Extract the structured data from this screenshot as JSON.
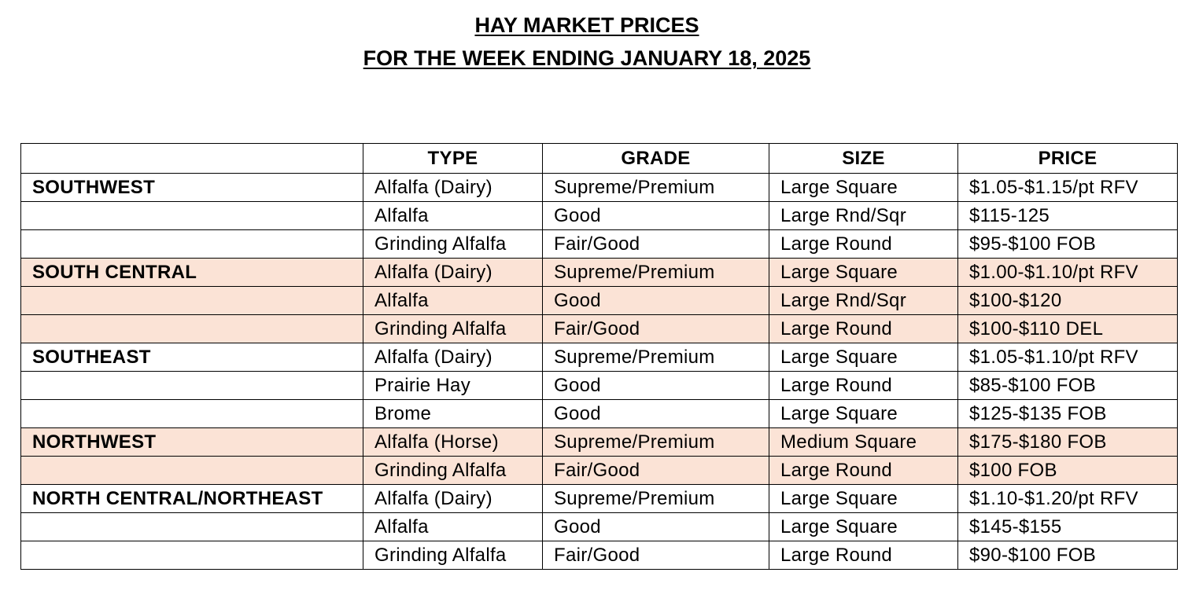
{
  "title": {
    "line1": "HAY MARKET PRICES",
    "line2": "FOR THE WEEK ENDING JANUARY 18, 2025"
  },
  "table": {
    "headers": [
      "",
      "TYPE",
      "GRADE",
      "SIZE",
      "PRICE"
    ],
    "rows": [
      {
        "region": "SOUTHWEST",
        "type": "Alfalfa (Dairy)",
        "grade": "Supreme/Premium",
        "size": "Large Square",
        "price": "$1.05-$1.15/pt RFV",
        "shaded": false
      },
      {
        "region": "",
        "type": "Alfalfa",
        "grade": "Good",
        "size": "Large Rnd/Sqr",
        "price": "$115-125",
        "shaded": false
      },
      {
        "region": "",
        "type": "Grinding Alfalfa",
        "grade": "Fair/Good",
        "size": "Large Round",
        "price": "$95-$100 FOB",
        "shaded": false
      },
      {
        "region": "SOUTH CENTRAL",
        "type": "Alfalfa (Dairy)",
        "grade": "Supreme/Premium",
        "size": "Large Square",
        "price": "$1.00-$1.10/pt RFV",
        "shaded": true
      },
      {
        "region": "",
        "type": "Alfalfa",
        "grade": "Good",
        "size": "Large Rnd/Sqr",
        "price": "$100-$120",
        "shaded": true
      },
      {
        "region": "",
        "type": "Grinding Alfalfa",
        "grade": "Fair/Good",
        "size": "Large Round",
        "price": "$100-$110 DEL",
        "shaded": true
      },
      {
        "region": "SOUTHEAST",
        "type": "Alfalfa (Dairy)",
        "grade": "Supreme/Premium",
        "size": "Large Square",
        "price": "$1.05-$1.10/pt RFV",
        "shaded": false
      },
      {
        "region": "",
        "type": "Prairie Hay",
        "grade": "Good",
        "size": "Large Round",
        "price": "$85-$100 FOB",
        "shaded": false
      },
      {
        "region": "",
        "type": "Brome",
        "grade": "Good",
        "size": "Large Square",
        "price": "$125-$135 FOB",
        "shaded": false
      },
      {
        "region": "NORTHWEST",
        "type": "Alfalfa (Horse)",
        "grade": "Supreme/Premium",
        "size": "Medium Square",
        "price": "$175-$180 FOB",
        "shaded": true
      },
      {
        "region": "",
        "type": "Grinding Alfalfa",
        "grade": "Fair/Good",
        "size": "Large Round",
        "price": "$100 FOB",
        "shaded": true
      },
      {
        "region": "NORTH CENTRAL/NORTHEAST",
        "type": "Alfalfa (Dairy)",
        "grade": "Supreme/Premium",
        "size": "Large Square",
        "price": "$1.10-$1.20/pt RFV",
        "shaded": false
      },
      {
        "region": "",
        "type": "Alfalfa",
        "grade": "Good",
        "size": "Large Square",
        "price": "$145-$155",
        "shaded": false
      },
      {
        "region": "",
        "type": "Grinding Alfalfa",
        "grade": "Fair/Good",
        "size": "Large Round",
        "price": "$90-$100 FOB",
        "shaded": false
      }
    ]
  },
  "colors": {
    "shade": "#fbe3d6",
    "border": "#000000",
    "text": "#000000"
  }
}
